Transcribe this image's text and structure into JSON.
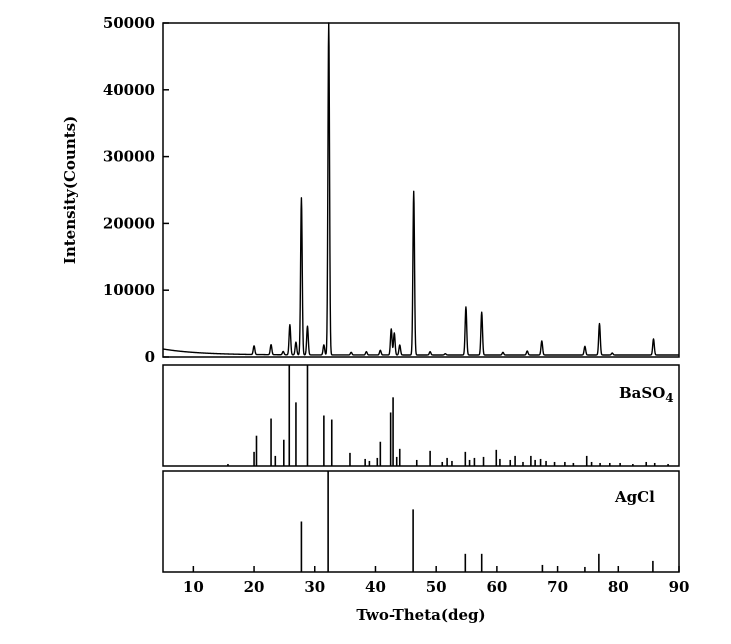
{
  "chart_data": {
    "type": "line",
    "xlabel": "Two-Theta(deg)",
    "ylabel": "Intensity(Counts)",
    "xlim": [
      5,
      90
    ],
    "ylim": [
      0,
      50000
    ],
    "x_ticks": [
      "10",
      "20",
      "30",
      "40",
      "50",
      "60",
      "70",
      "80",
      "90"
    ],
    "y_ticks": [
      "0",
      "10000",
      "20000",
      "30000",
      "40000",
      "50000"
    ],
    "background": {
      "start": 1200,
      "decay_to": 300
    },
    "peaks": [
      {
        "x": 20.0,
        "y": 1600
      },
      {
        "x": 22.8,
        "y": 1800
      },
      {
        "x": 24.8,
        "y": 800
      },
      {
        "x": 25.9,
        "y": 4800
      },
      {
        "x": 26.9,
        "y": 2200
      },
      {
        "x": 27.8,
        "y": 23800
      },
      {
        "x": 28.8,
        "y": 4600
      },
      {
        "x": 31.5,
        "y": 1800
      },
      {
        "x": 32.3,
        "y": 50000
      },
      {
        "x": 36.0,
        "y": 700
      },
      {
        "x": 38.5,
        "y": 800
      },
      {
        "x": 40.8,
        "y": 1000
      },
      {
        "x": 42.6,
        "y": 4200
      },
      {
        "x": 43.1,
        "y": 3600
      },
      {
        "x": 44.0,
        "y": 1800
      },
      {
        "x": 46.3,
        "y": 24800
      },
      {
        "x": 49.0,
        "y": 800
      },
      {
        "x": 51.5,
        "y": 500
      },
      {
        "x": 54.9,
        "y": 7500
      },
      {
        "x": 57.5,
        "y": 6700
      },
      {
        "x": 61.0,
        "y": 700
      },
      {
        "x": 65.0,
        "y": 900
      },
      {
        "x": 67.4,
        "y": 2400
      },
      {
        "x": 74.5,
        "y": 1600
      },
      {
        "x": 76.9,
        "y": 5000
      },
      {
        "x": 79.0,
        "y": 600
      },
      {
        "x": 85.8,
        "y": 2700
      }
    ],
    "references": [
      {
        "name": "BaSO4",
        "label_main": "BaSO",
        "label_sub": "4",
        "lines": [
          {
            "x": 15.7,
            "h": 2
          },
          {
            "x": 20.0,
            "h": 14
          },
          {
            "x": 20.4,
            "h": 30
          },
          {
            "x": 22.8,
            "h": 47
          },
          {
            "x": 23.5,
            "h": 10
          },
          {
            "x": 24.9,
            "h": 26
          },
          {
            "x": 25.8,
            "h": 100
          },
          {
            "x": 26.9,
            "h": 63
          },
          {
            "x": 28.8,
            "h": 100
          },
          {
            "x": 31.5,
            "h": 50
          },
          {
            "x": 32.8,
            "h": 46
          },
          {
            "x": 35.8,
            "h": 13
          },
          {
            "x": 38.3,
            "h": 7
          },
          {
            "x": 39.0,
            "h": 5
          },
          {
            "x": 40.3,
            "h": 8
          },
          {
            "x": 40.8,
            "h": 24
          },
          {
            "x": 42.5,
            "h": 53
          },
          {
            "x": 42.9,
            "h": 68
          },
          {
            "x": 43.5,
            "h": 9
          },
          {
            "x": 44.0,
            "h": 17
          },
          {
            "x": 46.8,
            "h": 6
          },
          {
            "x": 49.0,
            "h": 15
          },
          {
            "x": 51.0,
            "h": 4
          },
          {
            "x": 51.8,
            "h": 8
          },
          {
            "x": 52.6,
            "h": 5
          },
          {
            "x": 54.8,
            "h": 14
          },
          {
            "x": 55.5,
            "h": 6
          },
          {
            "x": 56.3,
            "h": 8
          },
          {
            "x": 57.8,
            "h": 9
          },
          {
            "x": 59.9,
            "h": 16
          },
          {
            "x": 60.5,
            "h": 7
          },
          {
            "x": 62.2,
            "h": 6
          },
          {
            "x": 63.0,
            "h": 10
          },
          {
            "x": 64.3,
            "h": 4
          },
          {
            "x": 65.6,
            "h": 10
          },
          {
            "x": 66.3,
            "h": 6
          },
          {
            "x": 67.2,
            "h": 7
          },
          {
            "x": 68.1,
            "h": 5
          },
          {
            "x": 69.5,
            "h": 4
          },
          {
            "x": 71.2,
            "h": 4
          },
          {
            "x": 72.6,
            "h": 3
          },
          {
            "x": 74.8,
            "h": 10
          },
          {
            "x": 75.6,
            "h": 4
          },
          {
            "x": 77.0,
            "h": 3
          },
          {
            "x": 78.6,
            "h": 3
          },
          {
            "x": 80.3,
            "h": 3
          },
          {
            "x": 82.4,
            "h": 2
          },
          {
            "x": 84.6,
            "h": 4
          },
          {
            "x": 86.0,
            "h": 3
          },
          {
            "x": 88.2,
            "h": 2
          }
        ]
      },
      {
        "name": "AgCl",
        "label_main": "AgCl",
        "label_sub": "",
        "lines": [
          {
            "x": 27.8,
            "h": 50
          },
          {
            "x": 32.2,
            "h": 100
          },
          {
            "x": 46.2,
            "h": 62
          },
          {
            "x": 54.8,
            "h": 18
          },
          {
            "x": 57.5,
            "h": 18
          },
          {
            "x": 67.5,
            "h": 7
          },
          {
            "x": 74.5,
            "h": 5
          },
          {
            "x": 76.8,
            "h": 18
          },
          {
            "x": 85.7,
            "h": 11
          }
        ]
      }
    ]
  }
}
